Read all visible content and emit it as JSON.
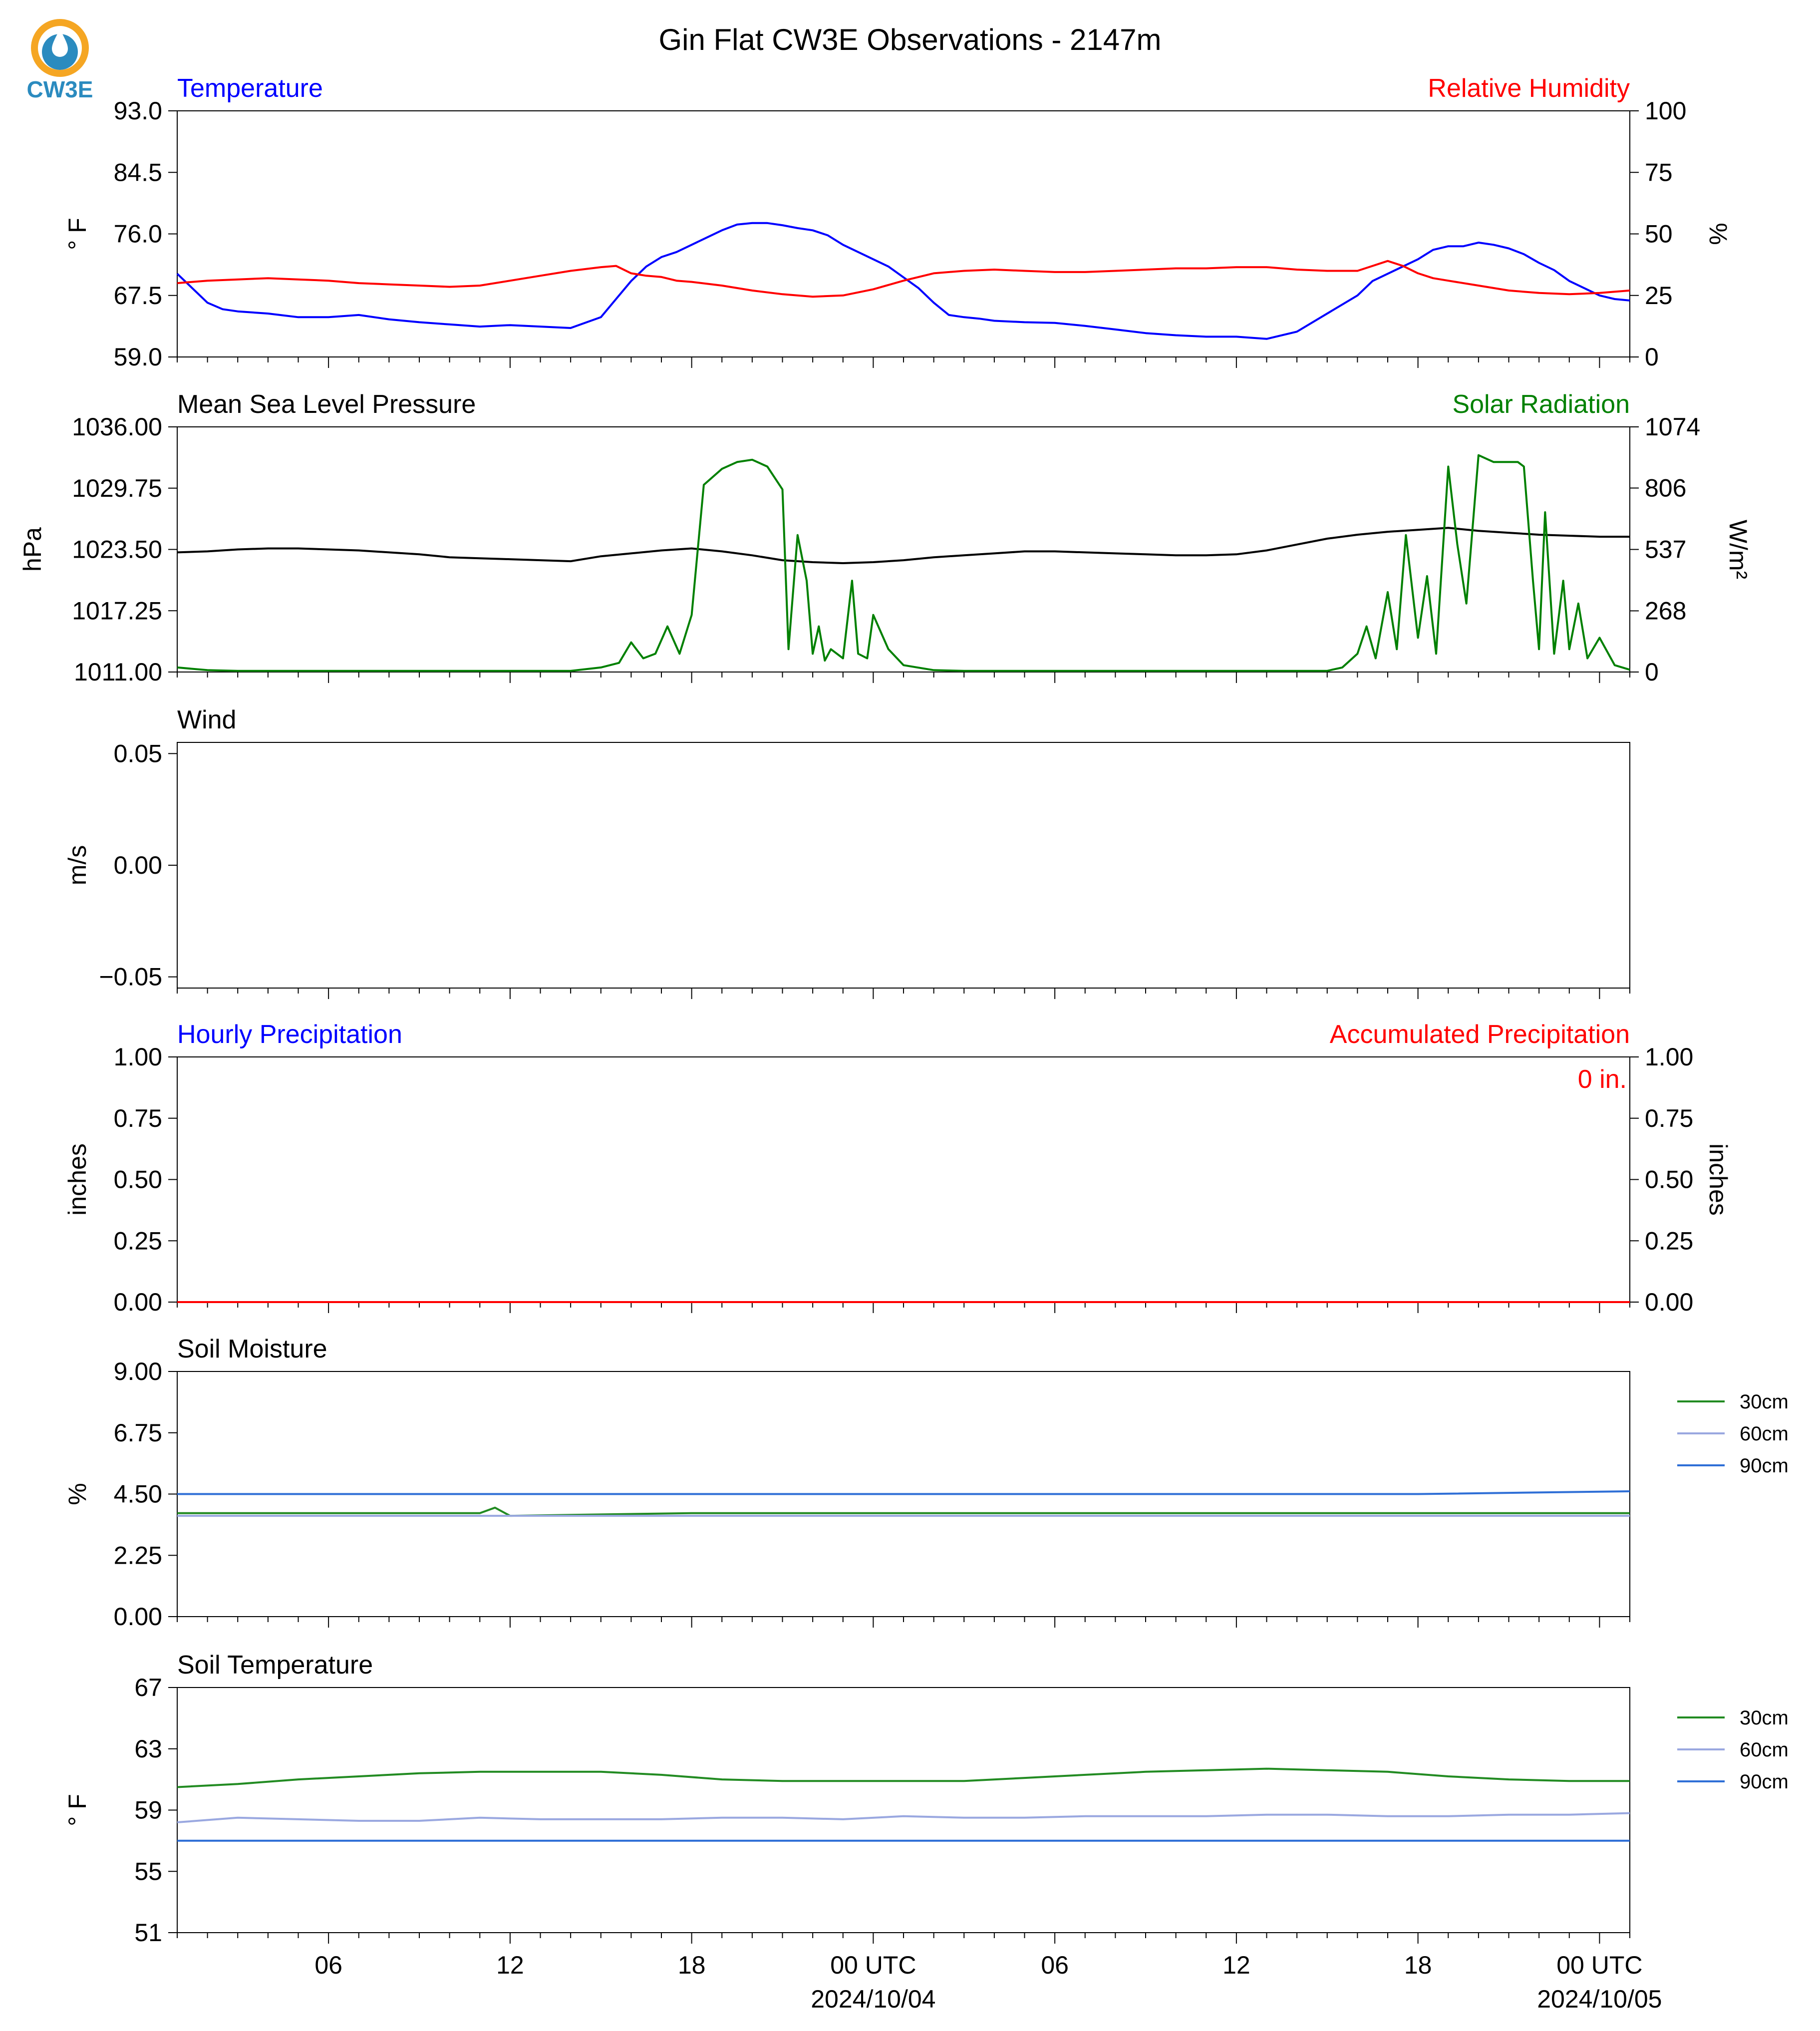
{
  "title": "Gin Flat CW3E Observations - 2147m",
  "logo": {
    "text": "CW3E",
    "colors": {
      "ring": "#f5a623",
      "drop": "#2b8bbf",
      "text": "#2b8bbf"
    }
  },
  "colors": {
    "blue": "#0000ff",
    "red": "#ff0000",
    "green": "#008000",
    "black": "#000000",
    "lightblue": "#9aa8e0",
    "midblue": "#2f6fd6"
  },
  "x_axis": {
    "tick_labels": [
      "06",
      "12",
      "18",
      "00 UTC",
      "06",
      "12",
      "18",
      "00 UTC"
    ],
    "tick_hours": [
      6,
      12,
      18,
      24,
      30,
      36,
      42,
      48
    ],
    "date_labels": [
      {
        "hour": 24,
        "text": "2024/10/04"
      },
      {
        "hour": 48,
        "text": "2024/10/05"
      }
    ],
    "range_hours": [
      1,
      49
    ]
  },
  "chart_data": [
    {
      "type": "line",
      "title_left": "Temperature",
      "title_right": "Relative Humidity",
      "ylabel": "° F",
      "ylabel_right": "%",
      "ylim": [
        59.0,
        93.0
      ],
      "ylim_right": [
        0,
        100
      ],
      "yticks": [
        "59.0",
        "67.5",
        "76.0",
        "84.5",
        "93.0"
      ],
      "yticks_right": [
        "0",
        "25",
        "50",
        "75",
        "100"
      ],
      "series": [
        {
          "axis": "left",
          "color": "#0000ff",
          "x": [
            1,
            1.5,
            2,
            2.5,
            3,
            4,
            5,
            6,
            7,
            8,
            9,
            10,
            11,
            12,
            13,
            14,
            15,
            15.5,
            16,
            16.5,
            17,
            17.5,
            18,
            18.5,
            19,
            19.5,
            20,
            20.5,
            21,
            21.5,
            22,
            22.5,
            23,
            23.5,
            24,
            24.5,
            25,
            25.5,
            26,
            26.5,
            27,
            27.5,
            28,
            29,
            30,
            31,
            32,
            33,
            34,
            35,
            36,
            37,
            38,
            39,
            40,
            40.5,
            41,
            41.5,
            42,
            42.5,
            43,
            43.5,
            44,
            44.5,
            45,
            45.5,
            46,
            46.5,
            47,
            47.5,
            48,
            48.5,
            49
          ],
          "y": [
            70.5,
            68.5,
            66.5,
            65.6,
            65.3,
            65.0,
            64.5,
            64.5,
            64.8,
            64.2,
            63.8,
            63.5,
            63.2,
            63.4,
            63.2,
            63.0,
            64.5,
            67,
            69.5,
            71.5,
            72.8,
            73.5,
            74.5,
            75.5,
            76.5,
            77.3,
            77.5,
            77.5,
            77.2,
            76.8,
            76.5,
            75.8,
            74.5,
            73.5,
            72.5,
            71.5,
            70.0,
            68.5,
            66.5,
            64.8,
            64.5,
            64.3,
            64.0,
            63.8,
            63.7,
            63.3,
            62.8,
            62.3,
            62.0,
            61.8,
            61.8,
            61.5,
            62.5,
            65.0,
            67.5,
            69.5,
            70.5,
            71.5,
            72.5,
            73.8,
            74.3,
            74.3,
            74.8,
            74.5,
            74.0,
            73.2,
            72.0,
            71.0,
            69.5,
            68.5,
            67.5,
            67.0,
            66.8
          ]
        },
        {
          "axis": "right",
          "color": "#ff0000",
          "x": [
            1,
            2,
            3,
            4,
            5,
            6,
            7,
            8,
            9,
            10,
            11,
            12,
            13,
            14,
            15,
            15.5,
            16,
            16.5,
            17,
            17.5,
            18,
            19,
            20,
            21,
            22,
            23,
            24,
            25,
            26,
            27,
            28,
            29,
            30,
            31,
            32,
            33,
            34,
            35,
            36,
            37,
            38,
            39,
            40,
            40.5,
            41,
            41.5,
            42,
            42.5,
            43,
            44,
            45,
            46,
            47,
            48,
            49
          ],
          "y": [
            30,
            31,
            31.5,
            32,
            31.5,
            31,
            30,
            29.5,
            29,
            28.5,
            29,
            31,
            33,
            35,
            36.5,
            37,
            34,
            33,
            32.5,
            31,
            30.5,
            29,
            27,
            25.5,
            24.5,
            25,
            27.5,
            31,
            34,
            35,
            35.5,
            35,
            34.5,
            34.5,
            35,
            35.5,
            36,
            36,
            36.5,
            36.5,
            35.5,
            35,
            35,
            37,
            39,
            37,
            34,
            32,
            31,
            29,
            27,
            26,
            25.5,
            26,
            27
          ]
        }
      ]
    },
    {
      "type": "line",
      "title_left": "Mean Sea Level Pressure",
      "title_right": "Solar Radiation",
      "ylabel": "hPa",
      "ylabel_right": "W/m²",
      "ylim": [
        1011.0,
        1036.0
      ],
      "ylim_right": [
        0,
        1074
      ],
      "yticks": [
        "1011.00",
        "1017.25",
        "1023.50",
        "1029.75",
        "1036.00"
      ],
      "yticks_right": [
        "0",
        "268",
        "537",
        "806",
        "1074"
      ],
      "series": [
        {
          "axis": "left",
          "color": "#000000",
          "x": [
            1,
            2,
            3,
            4,
            5,
            6,
            7,
            8,
            9,
            10,
            11,
            12,
            13,
            14,
            15,
            16,
            17,
            18,
            19,
            20,
            21,
            22,
            23,
            24,
            25,
            26,
            27,
            28,
            29,
            30,
            31,
            32,
            33,
            34,
            35,
            36,
            37,
            38,
            39,
            40,
            41,
            42,
            43,
            44,
            45,
            46,
            47,
            48,
            49
          ],
          "y": [
            1023.2,
            1023.3,
            1023.5,
            1023.6,
            1023.6,
            1023.5,
            1023.4,
            1023.2,
            1023.0,
            1022.7,
            1022.6,
            1022.5,
            1022.4,
            1022.3,
            1022.8,
            1023.1,
            1023.4,
            1023.6,
            1023.3,
            1022.9,
            1022.4,
            1022.2,
            1022.1,
            1022.2,
            1022.4,
            1022.7,
            1022.9,
            1023.1,
            1023.3,
            1023.3,
            1023.2,
            1023.1,
            1023.0,
            1022.9,
            1022.9,
            1023.0,
            1023.4,
            1024.0,
            1024.6,
            1025.0,
            1025.3,
            1025.5,
            1025.7,
            1025.4,
            1025.2,
            1025.0,
            1024.9,
            1024.8,
            1024.8
          ]
        },
        {
          "axis": "right",
          "color": "#008000",
          "x": [
            1,
            2,
            3,
            4,
            5,
            6,
            7,
            8,
            9,
            10,
            11,
            12,
            13,
            14,
            15,
            15.6,
            16,
            16.4,
            16.8,
            17.2,
            17.6,
            18,
            18.4,
            19,
            19.5,
            20,
            20.5,
            21,
            21.2,
            21.5,
            21.8,
            22,
            22.2,
            22.4,
            22.6,
            23,
            23.3,
            23.5,
            23.8,
            24,
            24.5,
            25,
            26,
            27,
            28,
            29,
            30,
            31,
            32,
            33,
            34,
            35,
            36,
            37,
            38,
            39,
            39.5,
            40,
            40.3,
            40.6,
            41,
            41.3,
            41.6,
            42,
            42.3,
            42.6,
            43,
            43.3,
            43.6,
            44,
            44.5,
            45,
            45.3,
            45.5,
            45.8,
            46,
            46.2,
            46.5,
            46.8,
            47,
            47.3,
            47.6,
            48,
            48.5,
            49
          ],
          "y": [
            20,
            8,
            5,
            5,
            5,
            5,
            5,
            5,
            5,
            5,
            5,
            5,
            5,
            5,
            20,
            40,
            130,
            60,
            80,
            200,
            80,
            250,
            820,
            890,
            920,
            930,
            900,
            800,
            100,
            600,
            400,
            80,
            200,
            50,
            100,
            60,
            400,
            80,
            60,
            250,
            100,
            30,
            8,
            5,
            5,
            5,
            5,
            5,
            5,
            5,
            5,
            5,
            5,
            5,
            5,
            5,
            20,
            80,
            200,
            60,
            350,
            100,
            600,
            150,
            420,
            80,
            900,
            560,
            300,
            950,
            920,
            920,
            920,
            900,
            400,
            100,
            700,
            80,
            400,
            100,
            300,
            60,
            150,
            30,
            10
          ]
        }
      ]
    },
    {
      "type": "line",
      "title_left": "Wind",
      "ylabel": "m/s",
      "ylim": [
        -0.055,
        0.055
      ],
      "yticks": [
        "−0.05",
        "0.00",
        "0.05"
      ],
      "series": []
    },
    {
      "type": "line",
      "title_left": "Hourly Precipitation",
      "title_right": "Accumulated Precipitation",
      "annotation": "0 in.",
      "ylabel": "inches",
      "ylabel_right": "inches",
      "ylim": [
        0.0,
        1.0
      ],
      "ylim_right": [
        0.0,
        1.0
      ],
      "yticks": [
        "0.00",
        "0.25",
        "0.50",
        "0.75",
        "1.00"
      ],
      "yticks_right": [
        "0.00",
        "0.25",
        "0.50",
        "0.75",
        "1.00"
      ],
      "series": [
        {
          "axis": "left",
          "color": "#0000ff",
          "x": [
            1,
            49
          ],
          "y": [
            0,
            0
          ]
        },
        {
          "axis": "right",
          "color": "#ff0000",
          "x": [
            1,
            49
          ],
          "y": [
            0,
            0
          ]
        }
      ]
    },
    {
      "type": "line",
      "title_left": "Soil Moisture",
      "ylabel": "%",
      "ylim": [
        0.0,
        9.0
      ],
      "yticks": [
        "0.00",
        "2.25",
        "4.50",
        "6.75",
        "9.00"
      ],
      "legend": [
        "30cm",
        "60cm",
        "90cm"
      ],
      "series": [
        {
          "name": "30cm",
          "color": "#228b22",
          "x": [
            1,
            6,
            11,
            11.5,
            12,
            18,
            24,
            30,
            36,
            42,
            49
          ],
          "y": [
            3.8,
            3.8,
            3.8,
            4.0,
            3.7,
            3.8,
            3.8,
            3.8,
            3.8,
            3.8,
            3.8
          ]
        },
        {
          "name": "60cm",
          "color": "#9aa8e0",
          "x": [
            1,
            49
          ],
          "y": [
            3.7,
            3.7
          ]
        },
        {
          "name": "90cm",
          "color": "#2f6fd6",
          "x": [
            1,
            6,
            12,
            18,
            24,
            30,
            36,
            42,
            49
          ],
          "y": [
            4.5,
            4.5,
            4.5,
            4.5,
            4.5,
            4.5,
            4.5,
            4.5,
            4.6
          ]
        }
      ]
    },
    {
      "type": "line",
      "title_left": "Soil Temperature",
      "ylabel": "° F",
      "ylim": [
        51,
        67
      ],
      "yticks": [
        "51",
        "55",
        "59",
        "63",
        "67"
      ],
      "legend": [
        "30cm",
        "60cm",
        "90cm"
      ],
      "series": [
        {
          "name": "30cm",
          "color": "#228b22",
          "x": [
            1,
            3,
            5,
            7,
            9,
            11,
            13,
            15,
            17,
            19,
            21,
            23,
            25,
            27,
            29,
            31,
            33,
            35,
            37,
            39,
            41,
            43,
            45,
            47,
            49
          ],
          "y": [
            60.5,
            60.7,
            61.0,
            61.2,
            61.4,
            61.5,
            61.5,
            61.5,
            61.3,
            61.0,
            60.9,
            60.9,
            60.9,
            60.9,
            61.1,
            61.3,
            61.5,
            61.6,
            61.7,
            61.6,
            61.5,
            61.2,
            61.0,
            60.9,
            60.9
          ]
        },
        {
          "name": "60cm",
          "color": "#9aa8e0",
          "x": [
            1,
            3,
            5,
            7,
            9,
            11,
            13,
            15,
            17,
            19,
            21,
            23,
            25,
            27,
            29,
            31,
            33,
            35,
            37,
            39,
            41,
            43,
            45,
            47,
            49
          ],
          "y": [
            58.2,
            58.5,
            58.4,
            58.3,
            58.3,
            58.5,
            58.4,
            58.4,
            58.4,
            58.5,
            58.5,
            58.4,
            58.6,
            58.5,
            58.5,
            58.6,
            58.6,
            58.6,
            58.7,
            58.7,
            58.6,
            58.6,
            58.7,
            58.7,
            58.8
          ]
        },
        {
          "name": "90cm",
          "color": "#2f6fd6",
          "x": [
            1,
            49
          ],
          "y": [
            57.0,
            57.0
          ]
        }
      ]
    }
  ]
}
